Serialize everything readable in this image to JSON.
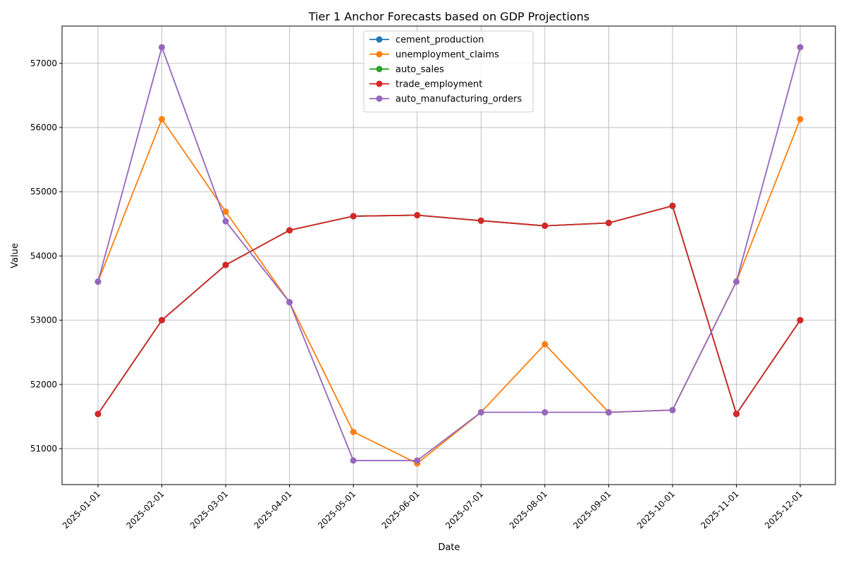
{
  "chart_data": {
    "type": "line",
    "title": "Tier 1 Anchor Forecasts based on GDP Projections",
    "xlabel": "Date",
    "ylabel": "Value",
    "x": [
      "2025-01-01",
      "2025-02-01",
      "2025-03-01",
      "2025-04-01",
      "2025-05-01",
      "2025-06-01",
      "2025-07-01",
      "2025-08-01",
      "2025-09-01",
      "2025-10-01",
      "2025-11-01",
      "2025-12-01"
    ],
    "ylim": [
      50440,
      57580
    ],
    "yticks": [
      51000,
      52000,
      53000,
      54000,
      55000,
      56000,
      57000
    ],
    "grid": true,
    "legend_position": "top-center",
    "marker": "circle",
    "series": [
      {
        "name": "cement_production",
        "color": "#1f77b4",
        "values": [
          51540,
          53000,
          53860,
          54400,
          54620,
          54635,
          54550,
          54470,
          54515,
          54780,
          51540,
          53000
        ]
      },
      {
        "name": "unemployment_claims",
        "color": "#ff7f0e",
        "values": [
          53600,
          56130,
          54690,
          53280,
          51260,
          50770,
          51565,
          52625,
          51565,
          51600,
          53600,
          56130
        ]
      },
      {
        "name": "auto_sales",
        "color": "#2ca02c",
        "values": [
          51540,
          53000,
          53860,
          54400,
          54620,
          54635,
          54550,
          54470,
          54515,
          54780,
          51540,
          53000
        ]
      },
      {
        "name": "trade_employment",
        "color": "#d62728",
        "values": [
          51540,
          53000,
          53860,
          54400,
          54620,
          54635,
          54550,
          54470,
          54515,
          54780,
          51540,
          53000
        ]
      },
      {
        "name": "auto_manufacturing_orders",
        "color": "#9467bd",
        "values": [
          53600,
          57250,
          54540,
          53280,
          50815,
          50815,
          51565,
          51565,
          51565,
          51600,
          53600,
          57250
        ]
      }
    ]
  }
}
